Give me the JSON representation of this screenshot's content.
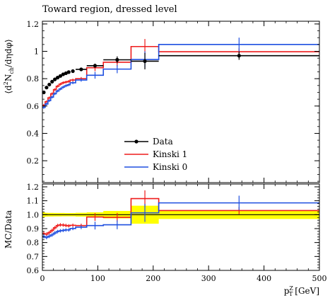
{
  "chart_data": {
    "type": "line",
    "title": "Toward region, dressed level",
    "ylabel_main": "⟨d²N_ch/dηdφ⟩",
    "ylabel_ratio": "MC/Data",
    "xlabel": "p_T^Z [GeV]",
    "x_ticks": [
      0,
      100,
      200,
      300,
      400,
      500
    ],
    "y_ticks_main": [
      0.2,
      0.4,
      0.6,
      0.8,
      1.0,
      1.2
    ],
    "y_ticks_ratio": [
      0.6,
      0.7,
      0.8,
      0.9,
      1.0,
      1.1,
      1.2
    ],
    "xlim": [
      0,
      500
    ],
    "ylim_main": [
      0.04,
      1.22
    ],
    "ylim_ratio": [
      0.6,
      1.22
    ],
    "legend_position": "center",
    "bin_edges": [
      0,
      5,
      10,
      15,
      20,
      25,
      30,
      35,
      40,
      45,
      50,
      60,
      80,
      110,
      160,
      210,
      500
    ],
    "data": {
      "name": "Data",
      "color": "#000000",
      "x": [
        2.5,
        7.5,
        12.5,
        17.5,
        22.5,
        27.5,
        32.5,
        37.5,
        42.5,
        47.5,
        55,
        70,
        95,
        135,
        185,
        355
      ],
      "y": [
        0.7,
        0.735,
        0.757,
        0.778,
        0.795,
        0.808,
        0.82,
        0.832,
        0.84,
        0.848,
        0.855,
        0.868,
        0.895,
        0.938,
        0.928,
        0.968
      ],
      "err": [
        0.012,
        0.01,
        0.01,
        0.01,
        0.01,
        0.01,
        0.01,
        0.01,
        0.01,
        0.01,
        0.01,
        0.012,
        0.015,
        0.025,
        0.06,
        0.03
      ]
    },
    "series": [
      {
        "name": "Kinski 1",
        "color": "#ee1c1c",
        "y": [
          0.605,
          0.632,
          0.66,
          0.69,
          0.72,
          0.745,
          0.76,
          0.77,
          0.775,
          0.78,
          0.79,
          0.8,
          0.88,
          0.92,
          1.035,
          0.997
        ],
        "err": [
          0.01,
          0.01,
          0.01,
          0.01,
          0.01,
          0.01,
          0.01,
          0.01,
          0.01,
          0.01,
          0.01,
          0.012,
          0.025,
          0.03,
          0.055,
          0.025
        ]
      },
      {
        "name": "Kinski 0",
        "color": "#1f4fe0",
        "y": [
          0.59,
          0.615,
          0.64,
          0.665,
          0.69,
          0.71,
          0.725,
          0.738,
          0.748,
          0.755,
          0.77,
          0.79,
          0.825,
          0.87,
          0.94,
          1.05
        ],
        "err": [
          0.01,
          0.01,
          0.01,
          0.01,
          0.01,
          0.01,
          0.01,
          0.01,
          0.01,
          0.01,
          0.01,
          0.012,
          0.025,
          0.03,
          0.06,
          0.05
        ]
      }
    ],
    "ratio_band_color": "#ffff00"
  }
}
